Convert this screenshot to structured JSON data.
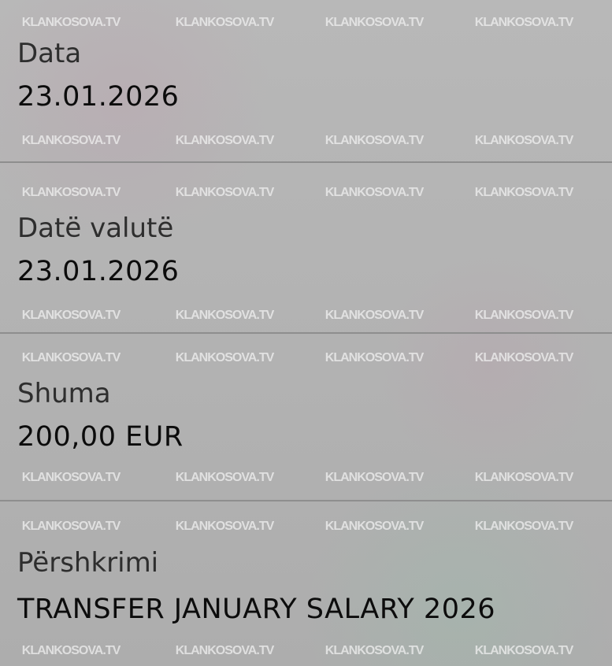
{
  "watermark": "KLANKOSOVA.TV",
  "fields": [
    {
      "label": "Data",
      "value": "23.01.2026"
    },
    {
      "label": "Datë valutë",
      "value": "23.01.2026"
    },
    {
      "label": "Shuma",
      "value": "200,00 EUR"
    },
    {
      "label": "Përshkrimi",
      "value": "TRANSFER  JANUARY SALARY 2026"
    }
  ]
}
